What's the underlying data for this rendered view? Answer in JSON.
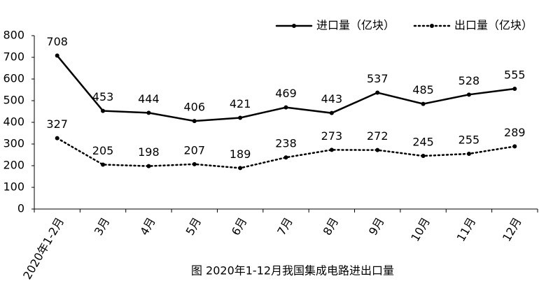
{
  "chart_data": {
    "type": "line",
    "title": "图 2020年1-12月我国集成电路进出口量",
    "categories": [
      "2020年1-2月",
      "3月",
      "4月",
      "5月",
      "6月",
      "7月",
      "8月",
      "9月",
      "10月",
      "11月",
      "12月"
    ],
    "series": [
      {
        "name": "进口量（亿块）",
        "color": "#000000",
        "dash": "solid",
        "values": [
          708,
          453,
          444,
          406,
          421,
          469,
          443,
          537,
          485,
          528,
          555
        ]
      },
      {
        "name": "出口量（亿块）",
        "color": "#000000",
        "dash": "dotted",
        "values": [
          327,
          205,
          198,
          207,
          189,
          238,
          273,
          272,
          245,
          255,
          289
        ]
      }
    ],
    "ylim": [
      0,
      800
    ],
    "yticks": [
      0,
      100,
      200,
      300,
      400,
      500,
      600,
      700,
      800
    ],
    "grid": false,
    "legend": "top-right"
  }
}
